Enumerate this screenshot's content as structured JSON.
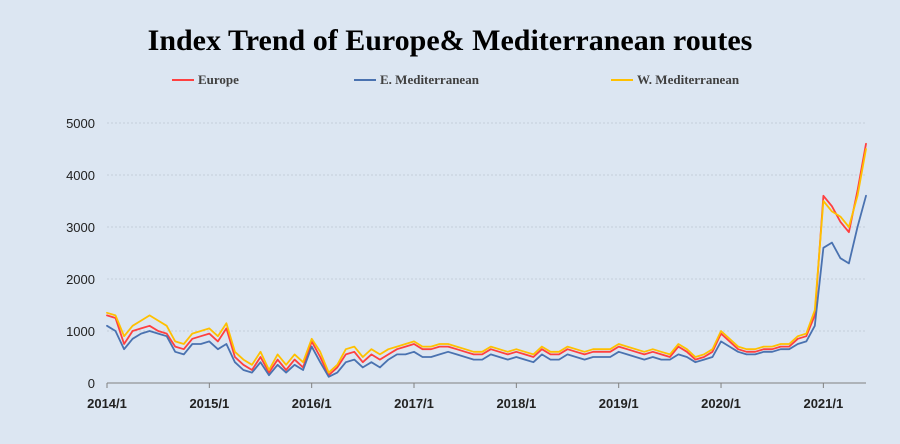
{
  "chart_data": {
    "type": "line",
    "title": "Index Trend of Europe& Mediterranean routes",
    "xlabel": "",
    "ylabel": "",
    "ylim": [
      0,
      5000
    ],
    "yticks": [
      "0",
      "1000",
      "2000",
      "3000",
      "4000",
      "5000"
    ],
    "xlim": [
      "2014/1",
      "2021/6"
    ],
    "xticks": [
      "2014/1",
      "2015/1",
      "2016/1",
      "2017/1",
      "2018/1",
      "2019/1",
      "2020/1",
      "2021/1"
    ],
    "grid": true,
    "legend_position": "top",
    "series": [
      {
        "name": "Europe",
        "color": "#ff4040",
        "x": [
          "2014/1",
          "2014/2",
          "2014/3",
          "2014/4",
          "2014/5",
          "2014/6",
          "2014/7",
          "2014/8",
          "2014/9",
          "2014/10",
          "2014/11",
          "2014/12",
          "2015/1",
          "2015/2",
          "2015/3",
          "2015/4",
          "2015/5",
          "2015/6",
          "2015/7",
          "2015/8",
          "2015/9",
          "2015/10",
          "2015/11",
          "2015/12",
          "2016/1",
          "2016/2",
          "2016/3",
          "2016/4",
          "2016/5",
          "2016/6",
          "2016/7",
          "2016/8",
          "2016/9",
          "2016/10",
          "2016/11",
          "2016/12",
          "2017/1",
          "2017/2",
          "2017/3",
          "2017/4",
          "2017/5",
          "2017/6",
          "2017/7",
          "2017/8",
          "2017/9",
          "2017/10",
          "2017/11",
          "2017/12",
          "2018/1",
          "2018/2",
          "2018/3",
          "2018/4",
          "2018/5",
          "2018/6",
          "2018/7",
          "2018/8",
          "2018/9",
          "2018/10",
          "2018/11",
          "2018/12",
          "2019/1",
          "2019/2",
          "2019/3",
          "2019/4",
          "2019/5",
          "2019/6",
          "2019/7",
          "2019/8",
          "2019/9",
          "2019/10",
          "2019/11",
          "2019/12",
          "2020/1",
          "2020/2",
          "2020/3",
          "2020/4",
          "2020/5",
          "2020/6",
          "2020/7",
          "2020/8",
          "2020/9",
          "2020/10",
          "2020/11",
          "2020/12",
          "2021/1",
          "2021/2",
          "2021/3",
          "2021/4",
          "2021/5",
          "2021/6"
        ],
        "values": [
          1300,
          1250,
          750,
          1000,
          1050,
          1100,
          1000,
          950,
          700,
          650,
          850,
          900,
          950,
          800,
          1050,
          500,
          350,
          250,
          500,
          200,
          450,
          250,
          450,
          300,
          800,
          500,
          150,
          300,
          550,
          600,
          400,
          550,
          450,
          550,
          650,
          700,
          750,
          650,
          650,
          700,
          700,
          650,
          600,
          550,
          550,
          650,
          600,
          550,
          600,
          550,
          500,
          650,
          550,
          550,
          650,
          600,
          550,
          600,
          600,
          600,
          700,
          650,
          600,
          550,
          600,
          550,
          500,
          700,
          600,
          450,
          500,
          600,
          950,
          800,
          650,
          600,
          600,
          650,
          650,
          700,
          700,
          850,
          900,
          1300,
          3600,
          3400,
          3100,
          2900,
          3700,
          4600
        ]
      },
      {
        "name": "E. Mediterranean",
        "color": "#4a72b0",
        "x": [
          "2014/1",
          "2014/2",
          "2014/3",
          "2014/4",
          "2014/5",
          "2014/6",
          "2014/7",
          "2014/8",
          "2014/9",
          "2014/10",
          "2014/11",
          "2014/12",
          "2015/1",
          "2015/2",
          "2015/3",
          "2015/4",
          "2015/5",
          "2015/6",
          "2015/7",
          "2015/8",
          "2015/9",
          "2015/10",
          "2015/11",
          "2015/12",
          "2016/1",
          "2016/2",
          "2016/3",
          "2016/4",
          "2016/5",
          "2016/6",
          "2016/7",
          "2016/8",
          "2016/9",
          "2016/10",
          "2016/11",
          "2016/12",
          "2017/1",
          "2017/2",
          "2017/3",
          "2017/4",
          "2017/5",
          "2017/6",
          "2017/7",
          "2017/8",
          "2017/9",
          "2017/10",
          "2017/11",
          "2017/12",
          "2018/1",
          "2018/2",
          "2018/3",
          "2018/4",
          "2018/5",
          "2018/6",
          "2018/7",
          "2018/8",
          "2018/9",
          "2018/10",
          "2018/11",
          "2018/12",
          "2019/1",
          "2019/2",
          "2019/3",
          "2019/4",
          "2019/5",
          "2019/6",
          "2019/7",
          "2019/8",
          "2019/9",
          "2019/10",
          "2019/11",
          "2019/12",
          "2020/1",
          "2020/2",
          "2020/3",
          "2020/4",
          "2020/5",
          "2020/6",
          "2020/7",
          "2020/8",
          "2020/9",
          "2020/10",
          "2020/11",
          "2020/12",
          "2021/1",
          "2021/2",
          "2021/3",
          "2021/4",
          "2021/5",
          "2021/6"
        ],
        "values": [
          1100,
          1000,
          650,
          850,
          950,
          1000,
          950,
          900,
          600,
          550,
          750,
          750,
          800,
          650,
          750,
          400,
          250,
          200,
          400,
          150,
          350,
          200,
          350,
          250,
          700,
          400,
          120,
          200,
          400,
          450,
          300,
          400,
          300,
          450,
          550,
          550,
          600,
          500,
          500,
          550,
          600,
          550,
          500,
          450,
          450,
          550,
          500,
          450,
          500,
          450,
          400,
          550,
          450,
          450,
          550,
          500,
          450,
          500,
          500,
          500,
          600,
          550,
          500,
          450,
          500,
          450,
          450,
          550,
          500,
          400,
          450,
          500,
          800,
          700,
          600,
          550,
          550,
          600,
          600,
          650,
          650,
          750,
          800,
          1100,
          2600,
          2700,
          2400,
          2300,
          3000,
          3600
        ]
      },
      {
        "name": "W. Mediterranean",
        "color": "#ffc000",
        "x": [
          "2014/1",
          "2014/2",
          "2014/3",
          "2014/4",
          "2014/5",
          "2014/6",
          "2014/7",
          "2014/8",
          "2014/9",
          "2014/10",
          "2014/11",
          "2014/12",
          "2015/1",
          "2015/2",
          "2015/3",
          "2015/4",
          "2015/5",
          "2015/6",
          "2015/7",
          "2015/8",
          "2015/9",
          "2015/10",
          "2015/11",
          "2015/12",
          "2016/1",
          "2016/2",
          "2016/3",
          "2016/4",
          "2016/5",
          "2016/6",
          "2016/7",
          "2016/8",
          "2016/9",
          "2016/10",
          "2016/11",
          "2016/12",
          "2017/1",
          "2017/2",
          "2017/3",
          "2017/4",
          "2017/5",
          "2017/6",
          "2017/7",
          "2017/8",
          "2017/9",
          "2017/10",
          "2017/11",
          "2017/12",
          "2018/1",
          "2018/2",
          "2018/3",
          "2018/4",
          "2018/5",
          "2018/6",
          "2018/7",
          "2018/8",
          "2018/9",
          "2018/10",
          "2018/11",
          "2018/12",
          "2019/1",
          "2019/2",
          "2019/3",
          "2019/4",
          "2019/5",
          "2019/6",
          "2019/7",
          "2019/8",
          "2019/9",
          "2019/10",
          "2019/11",
          "2019/12",
          "2020/1",
          "2020/2",
          "2020/3",
          "2020/4",
          "2020/5",
          "2020/6",
          "2020/7",
          "2020/8",
          "2020/9",
          "2020/10",
          "2020/11",
          "2020/12",
          "2021/1",
          "2021/2",
          "2021/3",
          "2021/4",
          "2021/5",
          "2021/6"
        ],
        "values": [
          1350,
          1300,
          900,
          1100,
          1200,
          1300,
          1200,
          1100,
          800,
          750,
          950,
          1000,
          1050,
          900,
          1150,
          600,
          450,
          350,
          600,
          250,
          550,
          350,
          550,
          400,
          850,
          600,
          200,
          350,
          650,
          700,
          500,
          650,
          550,
          650,
          700,
          750,
          800,
          700,
          700,
          750,
          750,
          700,
          650,
          600,
          600,
          700,
          650,
          600,
          650,
          600,
          550,
          700,
          600,
          600,
          700,
          650,
          600,
          650,
          650,
          650,
          750,
          700,
          650,
          600,
          650,
          600,
          550,
          750,
          650,
          500,
          550,
          650,
          1000,
          850,
          700,
          650,
          650,
          700,
          700,
          750,
          750,
          900,
          950,
          1400,
          3500,
          3300,
          3200,
          3000,
          3600,
          4500
        ]
      }
    ]
  }
}
